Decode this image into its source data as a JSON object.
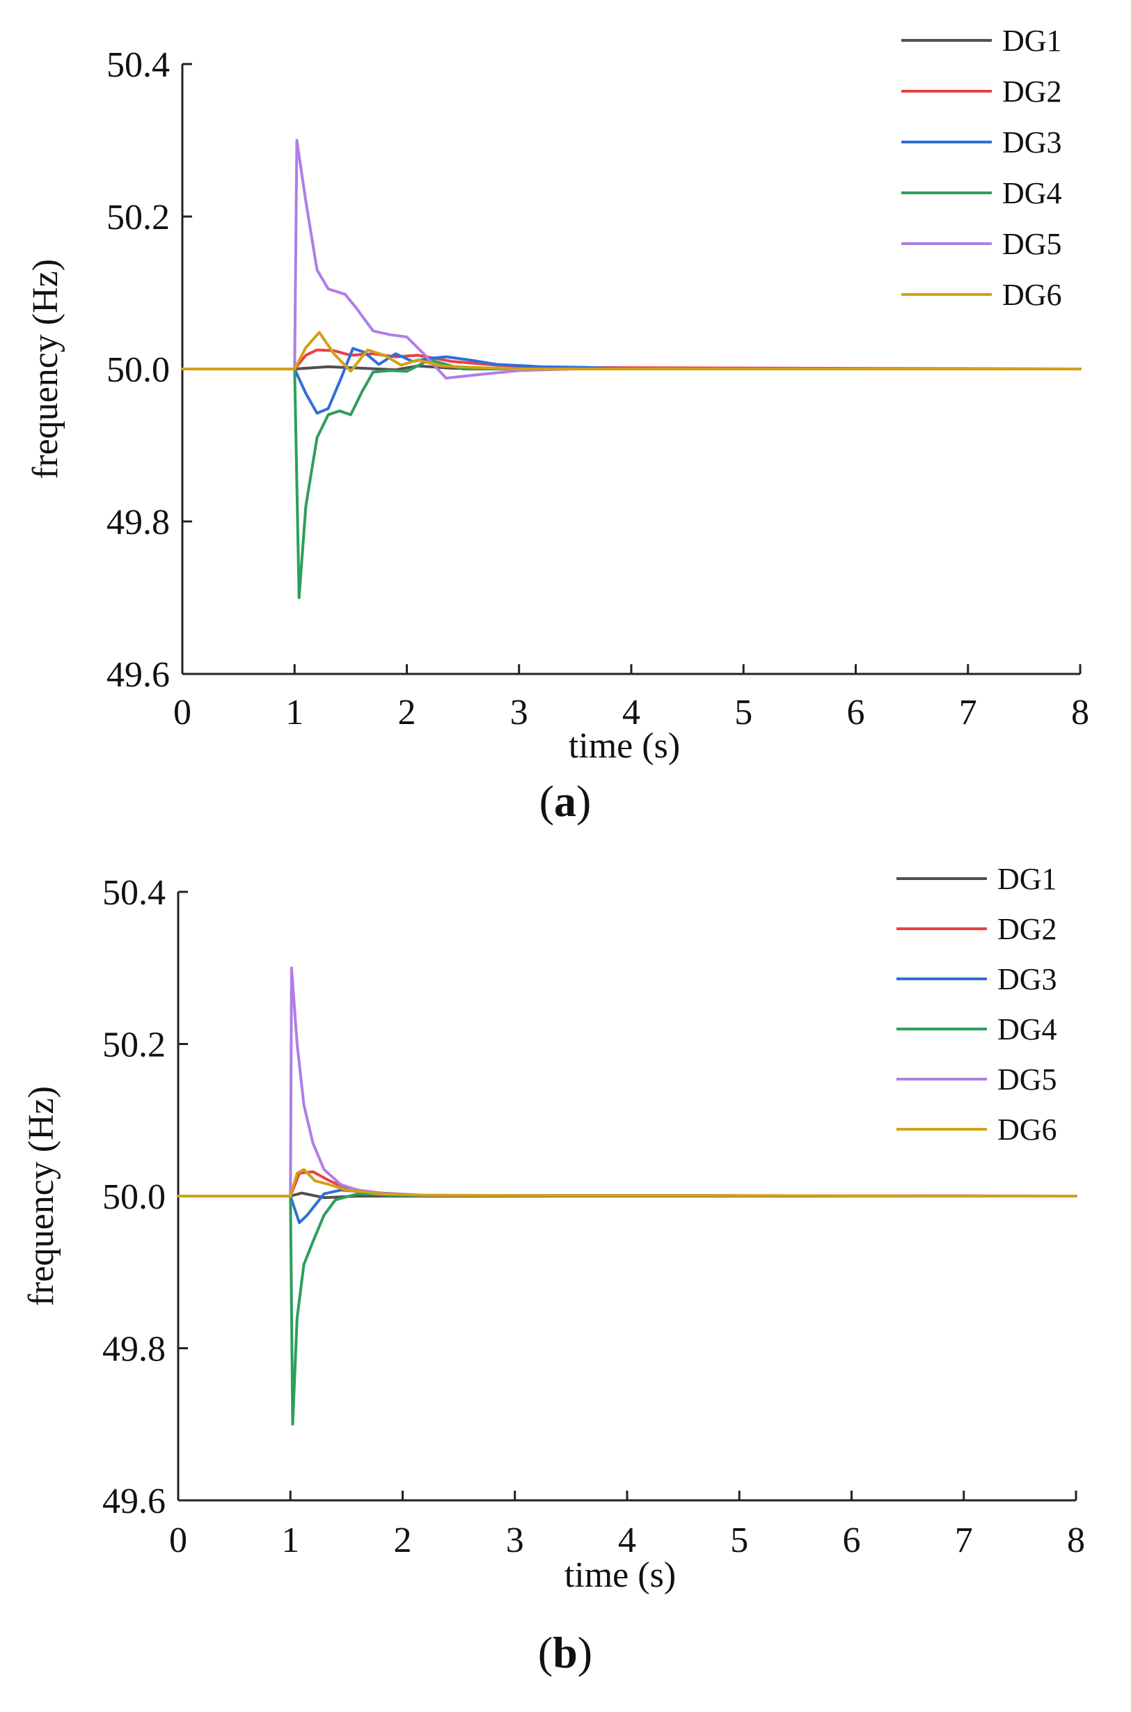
{
  "chart_data": [
    {
      "type": "line",
      "panel_label": "a",
      "xlabel": "time (s)",
      "ylabel": "frequency (Hz)",
      "xlim": [
        0,
        8
      ],
      "ylim": [
        49.6,
        50.4
      ],
      "x_ticks": [
        "0",
        "1",
        "2",
        "3",
        "4",
        "5",
        "6",
        "7",
        "8"
      ],
      "y_ticks": [
        "49.6",
        "49.8",
        "50.0",
        "50.2",
        "50.4"
      ],
      "legend_position": "top-right",
      "series": [
        {
          "name": "DG1",
          "color": "#505050",
          "x": [
            0,
            1,
            1.3,
            1.6,
            1.9,
            2.1,
            2.4,
            2.8,
            8
          ],
          "y": [
            50.0,
            50.0,
            50.003,
            50.001,
            49.999,
            50.004,
            50.001,
            50.0,
            50.0
          ]
        },
        {
          "name": "DG2",
          "color": "#e8423f",
          "x": [
            0,
            1,
            1.1,
            1.2,
            1.35,
            1.5,
            1.7,
            1.9,
            2.1,
            2.4,
            2.8,
            3.2,
            8
          ],
          "y": [
            50.0,
            50.0,
            50.018,
            50.025,
            50.024,
            50.018,
            50.02,
            50.016,
            50.018,
            50.01,
            50.005,
            50.002,
            50.0
          ]
        },
        {
          "name": "DG3",
          "color": "#2f6fd6",
          "x": [
            0,
            1,
            1.1,
            1.2,
            1.3,
            1.42,
            1.52,
            1.62,
            1.75,
            1.9,
            2.05,
            2.2,
            2.35,
            2.55,
            2.8,
            3.2,
            3.6,
            4.0,
            8
          ],
          "y": [
            50.0,
            50.0,
            49.968,
            49.942,
            49.948,
            49.99,
            50.027,
            50.022,
            50.006,
            50.02,
            50.01,
            50.014,
            50.016,
            50.012,
            50.006,
            50.003,
            50.002,
            50.0,
            50.0
          ]
        },
        {
          "name": "DG4",
          "color": "#2e9e5b",
          "x": [
            0,
            1,
            1.04,
            1.1,
            1.2,
            1.3,
            1.4,
            1.5,
            1.6,
            1.7,
            1.85,
            2.0,
            2.2,
            2.5,
            8
          ],
          "y": [
            50.0,
            50.0,
            49.7,
            49.82,
            49.91,
            49.94,
            49.945,
            49.94,
            49.97,
            49.996,
            49.998,
            49.997,
            50.012,
            50.0,
            50.0
          ]
        },
        {
          "name": "DG5",
          "color": "#b07de6",
          "x": [
            0,
            1,
            1.02,
            1.1,
            1.2,
            1.3,
            1.45,
            1.55,
            1.7,
            1.85,
            2.0,
            2.15,
            2.35,
            2.6,
            3.0,
            3.5,
            8
          ],
          "y": [
            50.0,
            50.0,
            50.3,
            50.22,
            50.13,
            50.105,
            50.098,
            50.08,
            50.05,
            50.045,
            50.042,
            50.02,
            49.988,
            49.992,
            49.998,
            50.0,
            50.0
          ]
        },
        {
          "name": "DG6",
          "color": "#d4a017",
          "x": [
            0,
            1,
            1.1,
            1.22,
            1.35,
            1.5,
            1.65,
            1.8,
            1.95,
            2.1,
            2.3,
            2.6,
            3.0,
            8
          ],
          "y": [
            50.0,
            50.0,
            50.028,
            50.048,
            50.02,
            49.997,
            50.025,
            50.018,
            50.005,
            50.012,
            50.004,
            50.002,
            50.0,
            50.0
          ]
        }
      ]
    },
    {
      "type": "line",
      "panel_label": "b",
      "xlabel": "time (s)",
      "ylabel": "frequency (Hz)",
      "xlim": [
        0,
        8
      ],
      "ylim": [
        49.6,
        50.4
      ],
      "x_ticks": [
        "0",
        "1",
        "2",
        "3",
        "4",
        "5",
        "6",
        "7",
        "8"
      ],
      "y_ticks": [
        "49.6",
        "49.8",
        "50.0",
        "50.2",
        "50.4"
      ],
      "legend_position": "top-right",
      "series": [
        {
          "name": "DG1",
          "color": "#505050",
          "x": [
            0,
            1,
            1.1,
            1.3,
            1.6,
            8
          ],
          "y": [
            50.0,
            50.0,
            50.004,
            49.998,
            50.0,
            50.0
          ]
        },
        {
          "name": "DG2",
          "color": "#e8423f",
          "x": [
            0,
            1,
            1.08,
            1.2,
            1.35,
            1.5,
            1.8,
            2.2,
            8
          ],
          "y": [
            50.0,
            50.0,
            50.03,
            50.032,
            50.02,
            50.01,
            50.004,
            50.001,
            50.0
          ]
        },
        {
          "name": "DG3",
          "color": "#2f6fd6",
          "x": [
            0,
            1,
            1.08,
            1.15,
            1.3,
            1.45,
            1.7,
            2.1,
            8
          ],
          "y": [
            50.0,
            50.0,
            49.965,
            49.975,
            50.003,
            50.008,
            50.005,
            50.001,
            50.0
          ]
        },
        {
          "name": "DG4",
          "color": "#2e9e5b",
          "x": [
            0,
            1,
            1.02,
            1.06,
            1.12,
            1.2,
            1.3,
            1.4,
            1.6,
            1.9,
            8
          ],
          "y": [
            50.0,
            50.0,
            49.7,
            49.84,
            49.91,
            49.94,
            49.975,
            49.995,
            50.003,
            50.001,
            50.0
          ]
        },
        {
          "name": "DG5",
          "color": "#b07de6",
          "x": [
            0,
            1,
            1.01,
            1.06,
            1.12,
            1.2,
            1.3,
            1.45,
            1.6,
            1.85,
            2.2,
            8
          ],
          "y": [
            50.0,
            50.0,
            50.3,
            50.2,
            50.12,
            50.07,
            50.035,
            50.015,
            50.008,
            50.003,
            50.001,
            50.0
          ]
        },
        {
          "name": "DG6",
          "color": "#d4a017",
          "x": [
            0,
            1,
            1.06,
            1.12,
            1.22,
            1.35,
            1.5,
            1.8,
            2.2,
            8
          ],
          "y": [
            50.0,
            50.0,
            50.03,
            50.035,
            50.02,
            50.015,
            50.008,
            50.003,
            50.001,
            50.0
          ]
        }
      ]
    }
  ]
}
